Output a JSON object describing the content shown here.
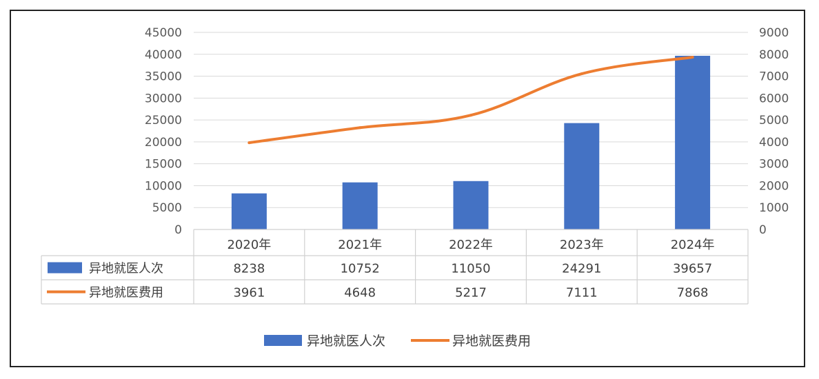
{
  "chart_data": {
    "type": "bar",
    "categories": [
      "2020年",
      "2021年",
      "2022年",
      "2023年",
      "2024年"
    ],
    "series": [
      {
        "name": "异地就医人次",
        "type": "bar",
        "axis": "left",
        "color": "#4472C4",
        "values": [
          8238,
          10752,
          11050,
          24291,
          39657
        ]
      },
      {
        "name": "异地就医费用",
        "type": "line",
        "axis": "right",
        "color": "#ED7D31",
        "values": [
          3961,
          4648,
          5217,
          7111,
          7868
        ]
      }
    ],
    "y_left": {
      "range": [
        0,
        45000
      ],
      "ticks": [
        "0",
        "5000",
        "10000",
        "15000",
        "20000",
        "25000",
        "30000",
        "35000",
        "40000",
        "45000"
      ]
    },
    "y_right": {
      "range": [
        0,
        9000
      ],
      "ticks": [
        "0",
        "1000",
        "2000",
        "3000",
        "4000",
        "5000",
        "6000",
        "7000",
        "8000",
        "9000"
      ]
    },
    "grid": true,
    "data_table": true,
    "legend": "bottom-center"
  }
}
